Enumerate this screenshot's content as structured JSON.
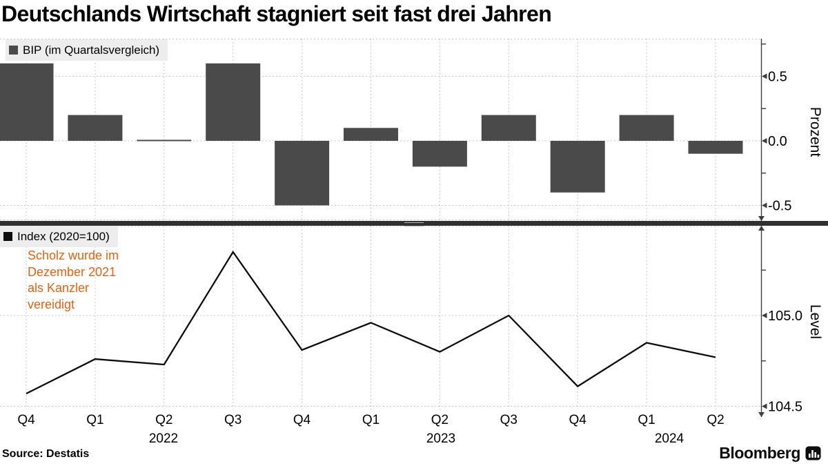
{
  "title": "Deutschlands Wirtschaft stagniert seit fast drei Jahren",
  "source_label": "Source: Destatis",
  "brand": {
    "wordmark": "Bloomberg",
    "icon": "bar-chart-icon"
  },
  "colors": {
    "bar": "#4a4a4a",
    "line": "#0d0d0d",
    "grid": "#c7c7c7",
    "axis": "#3d3d3d",
    "legend_bg": "#ededed",
    "annotation": "#e8620d",
    "divider": "#303030",
    "text": "#000000"
  },
  "x_axis": {
    "quarter_labels": [
      "Q4",
      "Q1",
      "Q2",
      "Q3",
      "Q4",
      "Q1",
      "Q2",
      "Q3",
      "Q4",
      "Q1",
      "Q2"
    ],
    "year_labels": [
      "2022",
      "2023",
      "2024"
    ]
  },
  "chart_data": [
    {
      "type": "bar",
      "legend": "BIP (im Quartalsvergleich)",
      "ylabel": "Prozent",
      "ytick_labels": [
        "0.5",
        "0.0",
        "-0.5"
      ],
      "ytick_values": [
        0.5,
        0.0,
        -0.5
      ],
      "minor_tick_values": [
        0.75,
        0.25,
        -0.25
      ],
      "ylim": [
        -0.62,
        0.79
      ],
      "grid": true,
      "legend_position": "top-left",
      "categories": [
        "Q4 2021",
        "Q1 2022",
        "Q2 2022",
        "Q3 2022",
        "Q4 2022",
        "Q1 2023",
        "Q2 2023",
        "Q3 2023",
        "Q4 2023",
        "Q1 2024",
        "Q2 2024"
      ],
      "values": [
        0.6,
        0.2,
        0.0,
        0.6,
        -0.5,
        0.1,
        -0.2,
        0.2,
        -0.4,
        0.2,
        -0.1
      ]
    },
    {
      "type": "line",
      "legend": "Index (2020=100)",
      "ylabel": "Level",
      "ytick_labels": [
        "105.0",
        "104.5"
      ],
      "ytick_values": [
        105.0,
        104.5
      ],
      "minor_tick_values": [
        105.25,
        104.75
      ],
      "ylim": [
        104.46,
        105.49
      ],
      "grid": true,
      "legend_position": "top-left",
      "categories": [
        "Q4 2021",
        "Q1 2022",
        "Q2 2022",
        "Q3 2022",
        "Q4 2022",
        "Q1 2023",
        "Q2 2023",
        "Q3 2023",
        "Q4 2023",
        "Q1 2024",
        "Q2 2024"
      ],
      "values": [
        104.57,
        104.76,
        104.73,
        105.35,
        104.81,
        104.96,
        104.8,
        105.0,
        104.61,
        104.85,
        104.77
      ],
      "annotation": {
        "lines": [
          "Scholz wurde im",
          "Dezember 2021",
          "als Kanzler",
          "vereidigt"
        ]
      }
    }
  ]
}
